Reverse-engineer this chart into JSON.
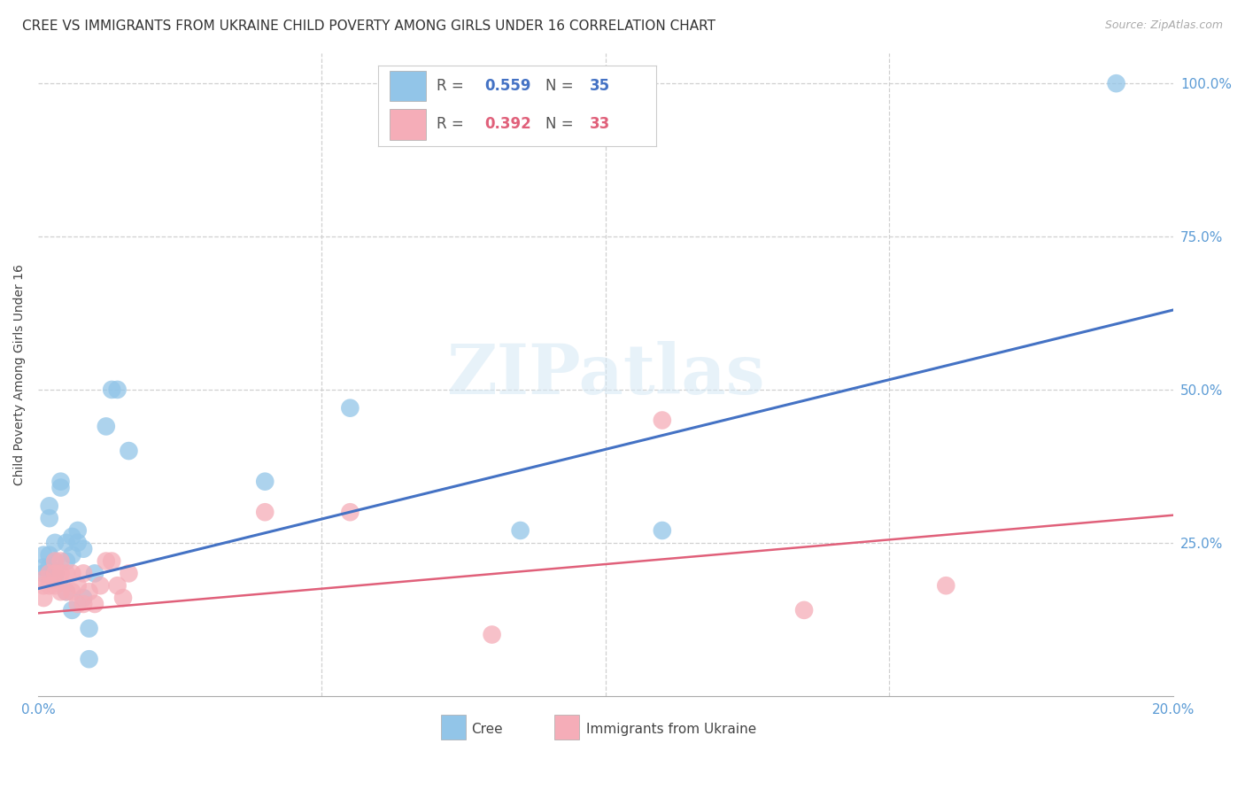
{
  "title": "CREE VS IMMIGRANTS FROM UKRAINE CHILD POVERTY AMONG GIRLS UNDER 16 CORRELATION CHART",
  "source": "Source: ZipAtlas.com",
  "ylabel": "Child Poverty Among Girls Under 16",
  "xlim": [
    0.0,
    0.2
  ],
  "ylim": [
    0.0,
    1.05
  ],
  "yticks": [
    0.0,
    0.25,
    0.5,
    0.75,
    1.0
  ],
  "ytick_labels": [
    "",
    "25.0%",
    "50.0%",
    "75.0%",
    "100.0%"
  ],
  "cree_color": "#92c5e8",
  "ukraine_color": "#f5adb8",
  "trendline_blue": "#4472c4",
  "trendline_pink": "#e0607a",
  "legend_blue_r": "0.559",
  "legend_blue_n": "35",
  "legend_pink_r": "0.392",
  "legend_pink_n": "33",
  "blue_trend_x0": 0.0,
  "blue_trend_y0": 0.175,
  "blue_trend_x1": 0.2,
  "blue_trend_y1": 0.63,
  "pink_trend_x0": 0.0,
  "pink_trend_y0": 0.135,
  "pink_trend_x1": 0.2,
  "pink_trend_y1": 0.295,
  "cree_x": [
    0.001,
    0.001,
    0.001,
    0.002,
    0.002,
    0.002,
    0.002,
    0.003,
    0.003,
    0.003,
    0.003,
    0.004,
    0.004,
    0.005,
    0.005,
    0.005,
    0.006,
    0.006,
    0.006,
    0.007,
    0.007,
    0.008,
    0.008,
    0.009,
    0.009,
    0.01,
    0.012,
    0.013,
    0.014,
    0.016,
    0.04,
    0.055,
    0.085,
    0.11,
    0.19
  ],
  "cree_y": [
    0.23,
    0.21,
    0.2,
    0.31,
    0.29,
    0.23,
    0.21,
    0.25,
    0.22,
    0.2,
    0.19,
    0.35,
    0.34,
    0.25,
    0.22,
    0.17,
    0.26,
    0.23,
    0.14,
    0.27,
    0.25,
    0.24,
    0.16,
    0.11,
    0.06,
    0.2,
    0.44,
    0.5,
    0.5,
    0.4,
    0.35,
    0.47,
    0.27,
    0.27,
    1.0
  ],
  "ukraine_x": [
    0.001,
    0.001,
    0.001,
    0.002,
    0.002,
    0.003,
    0.003,
    0.003,
    0.004,
    0.004,
    0.004,
    0.005,
    0.005,
    0.006,
    0.006,
    0.007,
    0.007,
    0.008,
    0.008,
    0.009,
    0.01,
    0.011,
    0.012,
    0.013,
    0.014,
    0.015,
    0.016,
    0.04,
    0.055,
    0.08,
    0.11,
    0.135,
    0.16
  ],
  "ukraine_y": [
    0.19,
    0.18,
    0.16,
    0.2,
    0.18,
    0.22,
    0.2,
    0.18,
    0.22,
    0.2,
    0.17,
    0.2,
    0.17,
    0.2,
    0.17,
    0.18,
    0.15,
    0.2,
    0.15,
    0.17,
    0.15,
    0.18,
    0.22,
    0.22,
    0.18,
    0.16,
    0.2,
    0.3,
    0.3,
    0.1,
    0.45,
    0.14,
    0.18
  ],
  "title_fontsize": 11,
  "axis_label_fontsize": 10,
  "tick_fontsize": 11,
  "source_fontsize": 9
}
